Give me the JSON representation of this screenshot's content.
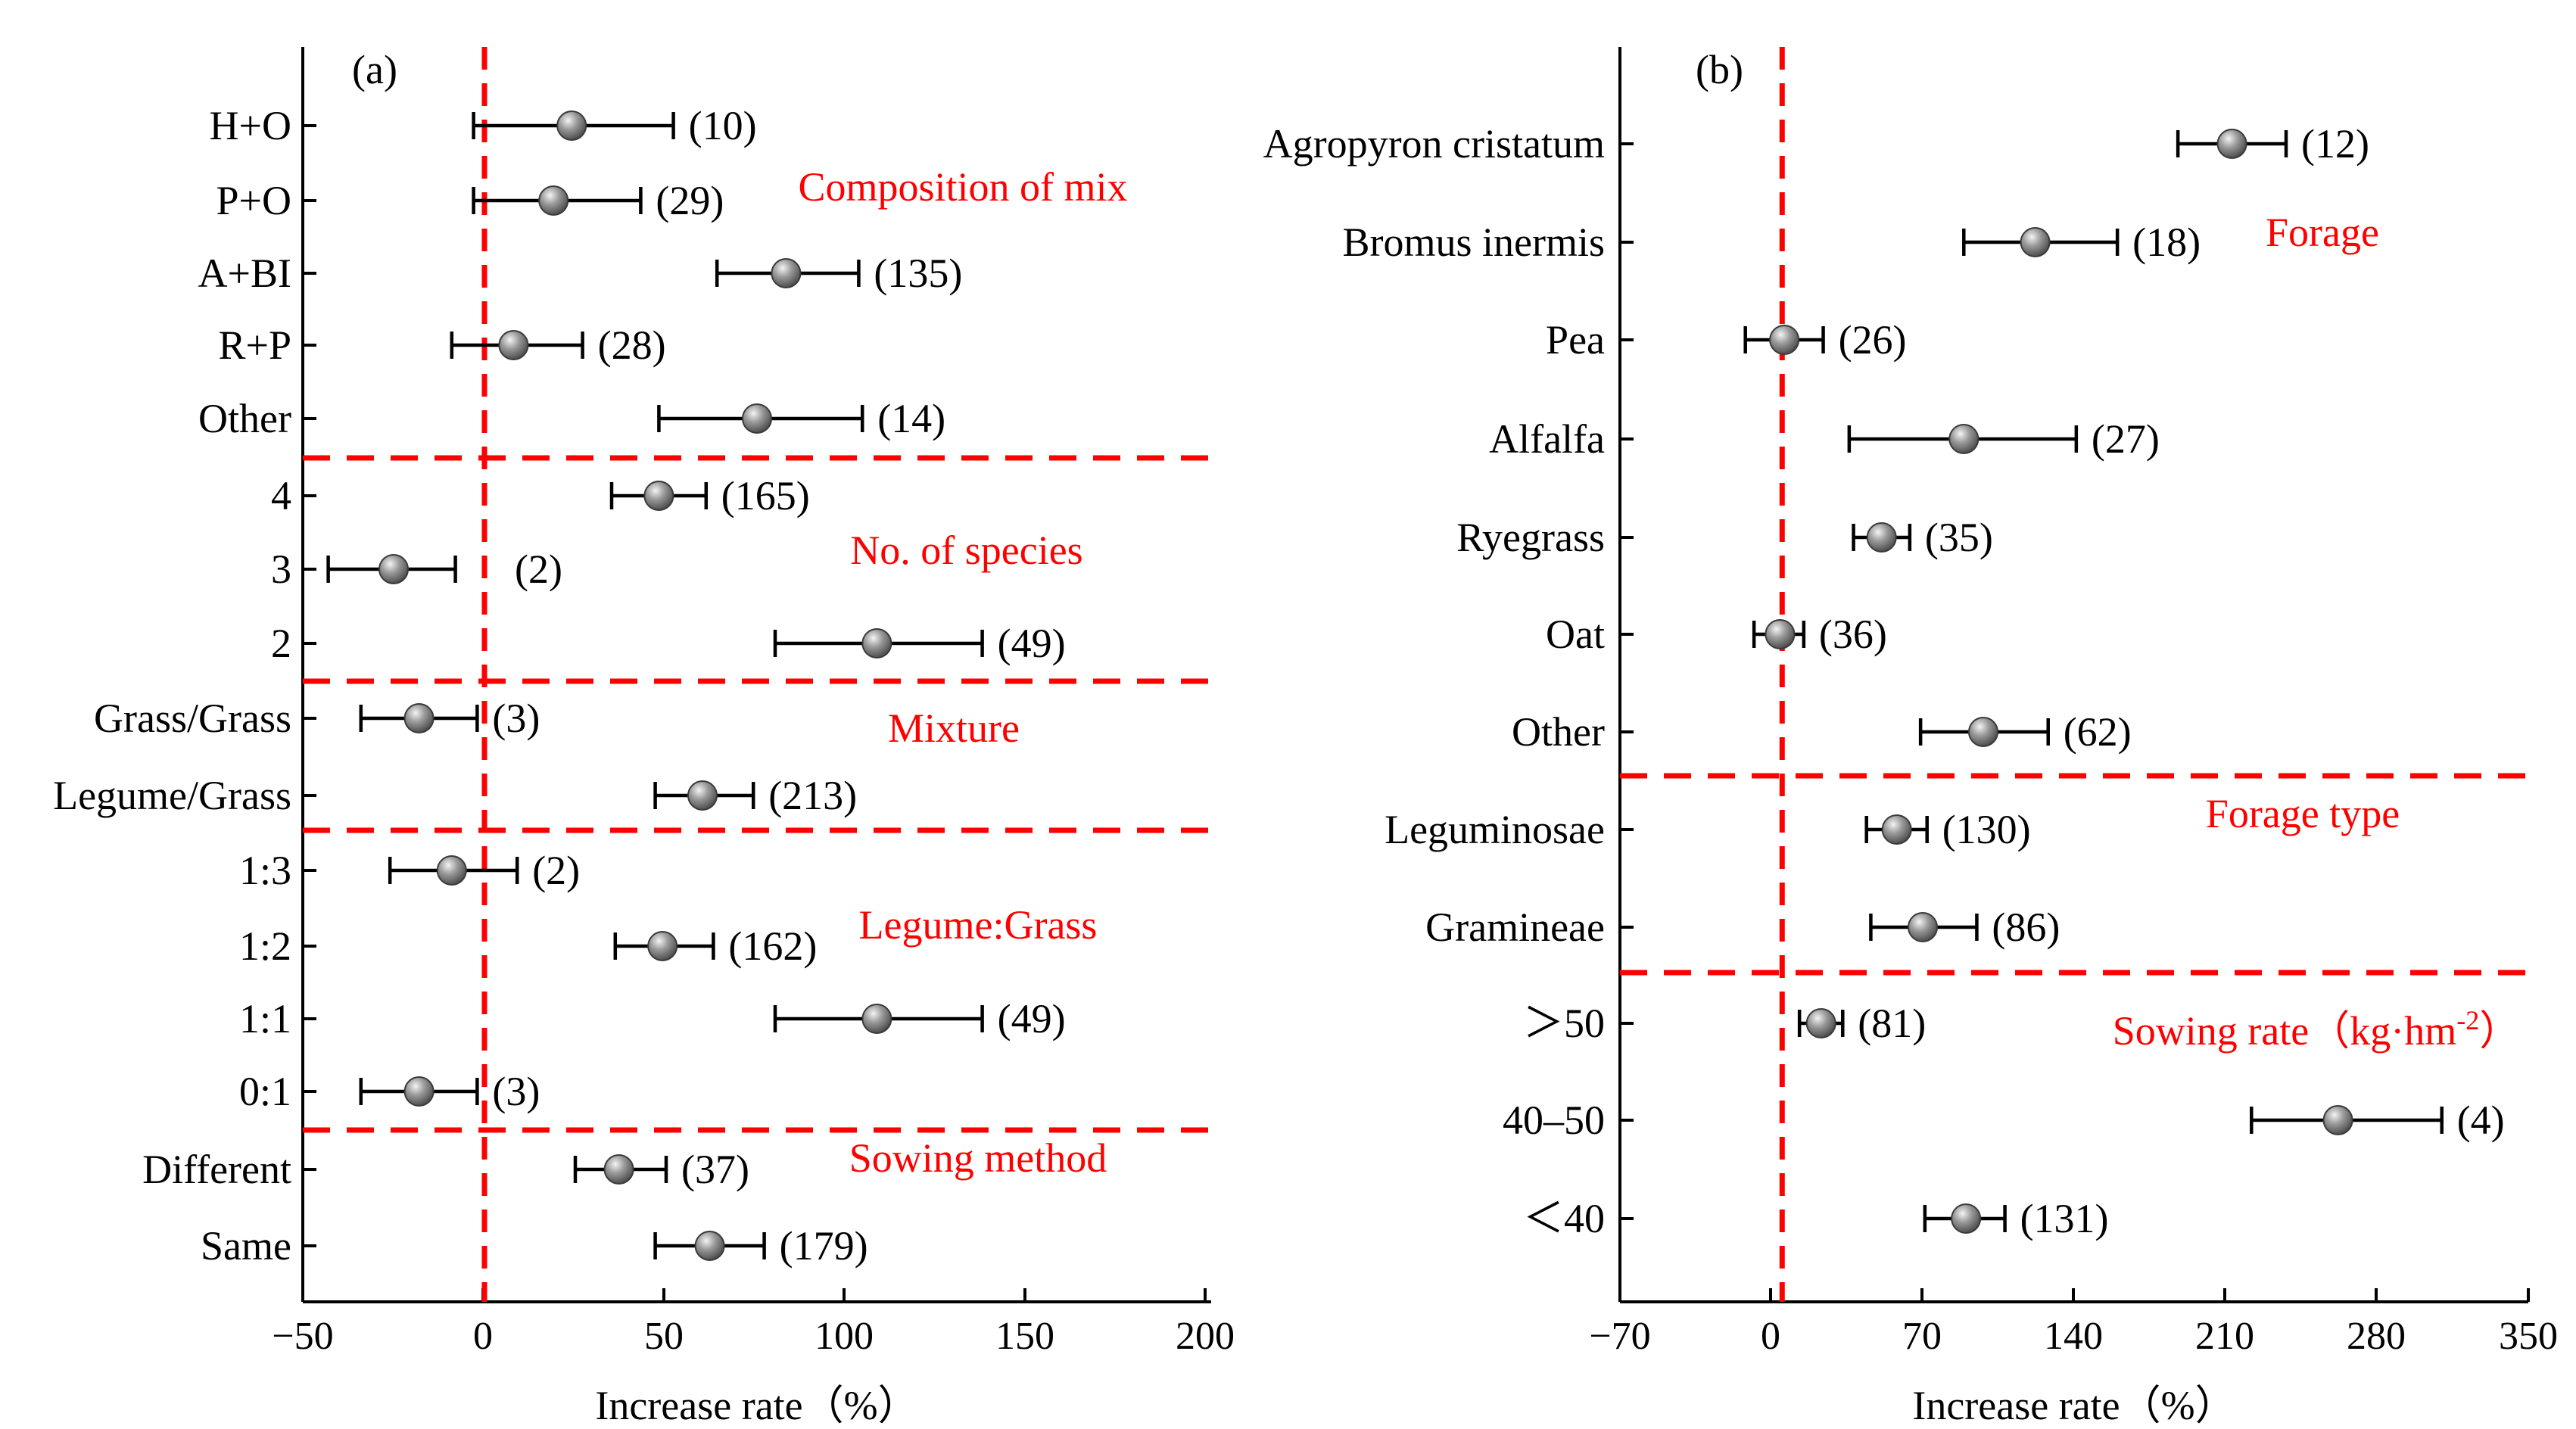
{
  "colors": {
    "reference_lines": "#ff0000",
    "marker": "#9a9a9a",
    "error_bars": "#000000"
  },
  "chart_data": [
    {
      "panel": "(a)",
      "type": "scatter",
      "marker": "sphere",
      "xlabel": "Increase rate（%）",
      "xlim": [
        -50,
        200
      ],
      "xticks": [
        "−50",
        "0",
        "50",
        "100",
        "150",
        "200"
      ],
      "reference_line_x": 0,
      "groups": [
        {
          "label": "Composition of  mix",
          "rows": [
            {
              "category": "H+O",
              "mean": 24,
              "lo": -3,
              "hi": 52,
              "count": "(10)"
            },
            {
              "category": "P+O",
              "mean": 19,
              "lo": -3,
              "hi": 43,
              "count": "(29)"
            },
            {
              "category": "A+BI",
              "mean": 83,
              "lo": 64,
              "hi": 103,
              "count": "(135)"
            },
            {
              "category": "R+P",
              "mean": 8,
              "lo": -9,
              "hi": 27,
              "count": "(28)"
            },
            {
              "category": "Other",
              "mean": 75,
              "lo": 48,
              "hi": 104,
              "count": "(14)"
            }
          ]
        },
        {
          "label": "No. of species",
          "rows": [
            {
              "category": "4",
              "mean": 48,
              "lo": 35,
              "hi": 61,
              "count": "(165)"
            },
            {
              "category": "3",
              "mean": -25,
              "lo": -43,
              "hi": -8,
              "count": "(2)"
            },
            {
              "category": "2",
              "mean": 108,
              "lo": 80,
              "hi": 137,
              "count": "(49)"
            }
          ]
        },
        {
          "label": "Mixture",
          "rows": [
            {
              "category": "Grass/Grass",
              "mean": -18,
              "lo": -34,
              "hi": -2,
              "count": "(3)"
            },
            {
              "category": "Legume/Grass",
              "mean": 60,
              "lo": 47,
              "hi": 74,
              "count": "(213)"
            }
          ]
        },
        {
          "label": "Legume:Grass",
          "rows": [
            {
              "category": "1:3",
              "mean": -9,
              "lo": -26,
              "hi": 9,
              "count": "(2)"
            },
            {
              "category": "1:2",
              "mean": 49,
              "lo": 36,
              "hi": 63,
              "count": "(162)"
            },
            {
              "category": "1:1",
              "mean": 108,
              "lo": 80,
              "hi": 137,
              "count": "(49)"
            },
            {
              "category": "0:1",
              "mean": -18,
              "lo": -34,
              "hi": -2,
              "count": "(3)"
            }
          ]
        },
        {
          "label": "Sowing method",
          "rows": [
            {
              "category": "Different",
              "mean": 37,
              "lo": 25,
              "hi": 50,
              "count": "(37)"
            },
            {
              "category": "Same",
              "mean": 62,
              "lo": 47,
              "hi": 77,
              "count": "(179)"
            }
          ]
        }
      ]
    },
    {
      "panel": "(b)",
      "type": "scatter",
      "marker": "sphere",
      "xlabel": "Increase rate（%）",
      "xlim": [
        -70,
        350
      ],
      "xticks": [
        "−70",
        "0",
        "70",
        "140",
        "210",
        "280",
        "350"
      ],
      "reference_line_x": 5,
      "groups": [
        {
          "label": "Forage",
          "rows": [
            {
              "category": "Agropyron cristatum",
              "mean": 213,
              "lo": 188,
              "hi": 238,
              "count": "(12)"
            },
            {
              "category": "Bromus inermis",
              "mean": 122,
              "lo": 89,
              "hi": 160,
              "count": "(18)"
            },
            {
              "category": "Pea",
              "mean": 6,
              "lo": -12,
              "hi": 24,
              "count": "(26)"
            },
            {
              "category": "Alfalfa",
              "mean": 89,
              "lo": 36,
              "hi": 141,
              "count": "(27)"
            },
            {
              "category": "Ryegrass",
              "mean": 51,
              "lo": 38,
              "hi": 64,
              "count": "(35)"
            },
            {
              "category": "Oat",
              "mean": 4,
              "lo": -8,
              "hi": 15,
              "count": "(36)"
            },
            {
              "category": "Other",
              "mean": 98,
              "lo": 69,
              "hi": 128,
              "count": "(62)"
            }
          ]
        },
        {
          "label": "Forage type",
          "rows": [
            {
              "category": "Leguminosae",
              "mean": 58,
              "lo": 44,
              "hi": 72,
              "count": "(130)"
            },
            {
              "category": "Gramineae",
              "mean": 70,
              "lo": 46,
              "hi": 95,
              "count": "(86)"
            }
          ]
        },
        {
          "label": "Sowing rate（kg·hm",
          "label_sup": "-2",
          "label_end": "）",
          "rows": [
            {
              "category": "＞50",
              "mean": 23,
              "lo": 13,
              "hi": 33,
              "count": "(81)"
            },
            {
              "category": "40–50",
              "mean": 262,
              "lo": 222,
              "hi": 310,
              "count": "(4)"
            },
            {
              "category": "＜40",
              "mean": 90,
              "lo": 71,
              "hi": 108,
              "count": "(131)"
            }
          ]
        }
      ]
    }
  ]
}
